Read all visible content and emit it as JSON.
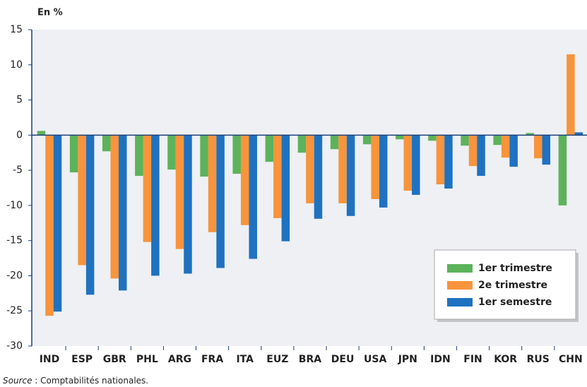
{
  "chart_data": {
    "type": "bar",
    "y_label": "En %",
    "categories": [
      "IND",
      "ESP",
      "GBR",
      "PHL",
      "ARG",
      "FRA",
      "ITA",
      "EUZ",
      "BRA",
      "DEU",
      "USA",
      "JPN",
      "IDN",
      "FIN",
      "KOR",
      "RUS",
      "CHN"
    ],
    "series": [
      {
        "name": "1er trimestre",
        "color": "#5cb35a",
        "values": [
          0.6,
          -5.3,
          -2.3,
          -5.8,
          -4.9,
          -5.9,
          -5.5,
          -3.8,
          -2.5,
          -2.0,
          -1.3,
          -0.6,
          -0.8,
          -1.5,
          -1.4,
          0.3,
          -10.0
        ]
      },
      {
        "name": "2e trimestre",
        "color": "#f7943c",
        "values": [
          -25.7,
          -18.5,
          -20.4,
          -15.2,
          -16.2,
          -13.8,
          -12.8,
          -11.8,
          -9.7,
          -9.7,
          -9.1,
          -7.9,
          -7.0,
          -4.4,
          -3.2,
          -3.3,
          11.5
        ]
      },
      {
        "name": "1er semestre",
        "color": "#1f72bf",
        "values": [
          -25.1,
          -22.7,
          -22.1,
          -20.0,
          -19.7,
          -18.9,
          -17.6,
          -15.1,
          -11.9,
          -11.5,
          -10.3,
          -8.5,
          -7.6,
          -5.8,
          -4.5,
          -4.2,
          0.4
        ]
      }
    ],
    "ylim": [
      -30,
      15
    ],
    "yticks": [
      -30,
      -25,
      -20,
      -15,
      -10,
      -5,
      0,
      5,
      10,
      15
    ],
    "legend": "lower right",
    "source_label": "Source",
    "source_text": " : Comptabilités nationales."
  }
}
